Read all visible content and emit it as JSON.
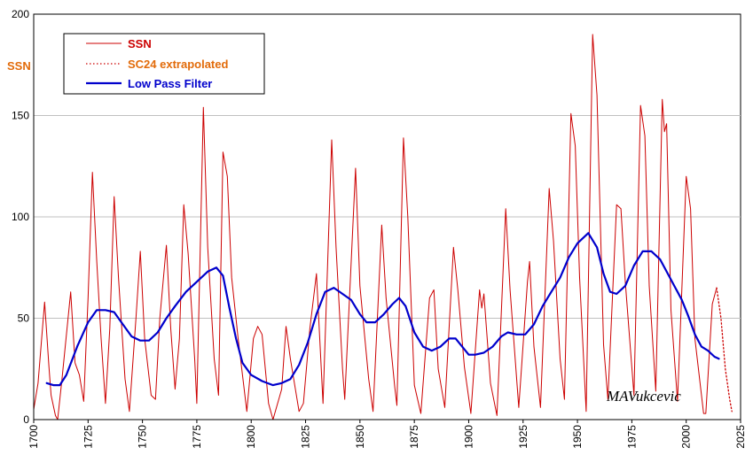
{
  "chart_data": {
    "type": "line",
    "ylabel": "SSN",
    "xlim": [
      1700,
      2025
    ],
    "ylim": [
      0,
      200
    ],
    "x_ticks": [
      1700,
      1725,
      1750,
      1775,
      1800,
      1825,
      1850,
      1875,
      1900,
      1925,
      1950,
      1975,
      2000,
      2025
    ],
    "y_ticks": [
      0,
      50,
      100,
      150,
      200
    ],
    "grid": "horizontal",
    "legend_position": "top-left",
    "watermark": "MAVukcevic",
    "series": [
      {
        "name": "SSN",
        "color": "#cc0000",
        "style": "solid-thin",
        "points": [
          [
            1700,
            5
          ],
          [
            1702,
            18
          ],
          [
            1705,
            58
          ],
          [
            1707,
            26
          ],
          [
            1708,
            12
          ],
          [
            1710,
            2
          ],
          [
            1711,
            0
          ],
          [
            1713,
            20
          ],
          [
            1717,
            63
          ],
          [
            1719,
            28
          ],
          [
            1721,
            22
          ],
          [
            1723,
            9
          ],
          [
            1725,
            60
          ],
          [
            1727,
            122
          ],
          [
            1729,
            78
          ],
          [
            1731,
            40
          ],
          [
            1733,
            8
          ],
          [
            1735,
            45
          ],
          [
            1737,
            110
          ],
          [
            1739,
            70
          ],
          [
            1742,
            20
          ],
          [
            1744,
            4
          ],
          [
            1747,
            50
          ],
          [
            1749,
            83
          ],
          [
            1751,
            40
          ],
          [
            1754,
            12
          ],
          [
            1756,
            10
          ],
          [
            1758,
            50
          ],
          [
            1761,
            86
          ],
          [
            1763,
            45
          ],
          [
            1765,
            15
          ],
          [
            1767,
            40
          ],
          [
            1769,
            106
          ],
          [
            1771,
            82
          ],
          [
            1774,
            30
          ],
          [
            1775,
            8
          ],
          [
            1778,
            154
          ],
          [
            1780,
            85
          ],
          [
            1783,
            30
          ],
          [
            1785,
            12
          ],
          [
            1787,
            132
          ],
          [
            1789,
            120
          ],
          [
            1791,
            70
          ],
          [
            1794,
            40
          ],
          [
            1798,
            4
          ],
          [
            1801,
            40
          ],
          [
            1803,
            46
          ],
          [
            1805,
            42
          ],
          [
            1808,
            8
          ],
          [
            1810,
            0
          ],
          [
            1814,
            15
          ],
          [
            1816,
            46
          ],
          [
            1818,
            30
          ],
          [
            1822,
            4
          ],
          [
            1824,
            8
          ],
          [
            1827,
            45
          ],
          [
            1830,
            72
          ],
          [
            1833,
            8
          ],
          [
            1837,
            138
          ],
          [
            1839,
            85
          ],
          [
            1842,
            25
          ],
          [
            1843,
            10
          ],
          [
            1848,
            124
          ],
          [
            1850,
            66
          ],
          [
            1854,
            20
          ],
          [
            1856,
            4
          ],
          [
            1860,
            96
          ],
          [
            1862,
            60
          ],
          [
            1866,
            16
          ],
          [
            1867,
            7
          ],
          [
            1870,
            139
          ],
          [
            1872,
            100
          ],
          [
            1875,
            17
          ],
          [
            1878,
            3
          ],
          [
            1882,
            60
          ],
          [
            1884,
            64
          ],
          [
            1886,
            25
          ],
          [
            1889,
            6
          ],
          [
            1893,
            85
          ],
          [
            1895,
            64
          ],
          [
            1898,
            26
          ],
          [
            1901,
            3
          ],
          [
            1905,
            64
          ],
          [
            1906,
            55
          ],
          [
            1907,
            62
          ],
          [
            1910,
            18
          ],
          [
            1913,
            2
          ],
          [
            1917,
            104
          ],
          [
            1919,
            64
          ],
          [
            1923,
            6
          ],
          [
            1927,
            68
          ],
          [
            1928,
            78
          ],
          [
            1930,
            36
          ],
          [
            1933,
            6
          ],
          [
            1937,
            114
          ],
          [
            1939,
            88
          ],
          [
            1942,
            30
          ],
          [
            1944,
            10
          ],
          [
            1947,
            151
          ],
          [
            1949,
            135
          ],
          [
            1951,
            70
          ],
          [
            1954,
            4
          ],
          [
            1957,
            190
          ],
          [
            1959,
            160
          ],
          [
            1962,
            37
          ],
          [
            1964,
            10
          ],
          [
            1968,
            106
          ],
          [
            1970,
            104
          ],
          [
            1972,
            68
          ],
          [
            1976,
            12
          ],
          [
            1979,
            155
          ],
          [
            1981,
            140
          ],
          [
            1983,
            66
          ],
          [
            1986,
            14
          ],
          [
            1989,
            158
          ],
          [
            1990,
            142
          ],
          [
            1991,
            146
          ],
          [
            1993,
            54
          ],
          [
            1996,
            9
          ],
          [
            2000,
            120
          ],
          [
            2002,
            104
          ],
          [
            2004,
            40
          ],
          [
            2008,
            3
          ],
          [
            2009,
            3
          ],
          [
            2012,
            57
          ],
          [
            2014,
            65
          ]
        ]
      },
      {
        "name": "SC24 extrapolated",
        "color": "#cc0000",
        "style": "dotted",
        "points": [
          [
            2014,
            65
          ],
          [
            2016,
            50
          ],
          [
            2018,
            25
          ],
          [
            2020,
            10
          ],
          [
            2021,
            4
          ]
        ]
      },
      {
        "name": "Low Pass Filter",
        "color": "#0000cc",
        "style": "solid-thick",
        "points": [
          [
            1706,
            18
          ],
          [
            1709,
            17
          ],
          [
            1712,
            17
          ],
          [
            1715,
            22
          ],
          [
            1720,
            36
          ],
          [
            1725,
            48
          ],
          [
            1729,
            54
          ],
          [
            1733,
            54
          ],
          [
            1737,
            53
          ],
          [
            1741,
            47
          ],
          [
            1745,
            41
          ],
          [
            1749,
            39
          ],
          [
            1753,
            39
          ],
          [
            1757,
            43
          ],
          [
            1761,
            50
          ],
          [
            1765,
            56
          ],
          [
            1770,
            63
          ],
          [
            1775,
            68
          ],
          [
            1780,
            73
          ],
          [
            1784,
            75
          ],
          [
            1787,
            71
          ],
          [
            1790,
            55
          ],
          [
            1793,
            40
          ],
          [
            1796,
            28
          ],
          [
            1800,
            22
          ],
          [
            1805,
            19
          ],
          [
            1810,
            17
          ],
          [
            1814,
            18
          ],
          [
            1818,
            20
          ],
          [
            1822,
            27
          ],
          [
            1826,
            38
          ],
          [
            1830,
            52
          ],
          [
            1834,
            63
          ],
          [
            1838,
            65
          ],
          [
            1842,
            62
          ],
          [
            1846,
            59
          ],
          [
            1850,
            52
          ],
          [
            1853,
            48
          ],
          [
            1857,
            48
          ],
          [
            1861,
            52
          ],
          [
            1865,
            57
          ],
          [
            1868,
            60
          ],
          [
            1871,
            56
          ],
          [
            1875,
            43
          ],
          [
            1879,
            36
          ],
          [
            1883,
            34
          ],
          [
            1887,
            36
          ],
          [
            1891,
            40
          ],
          [
            1894,
            40
          ],
          [
            1897,
            36
          ],
          [
            1900,
            32
          ],
          [
            1903,
            32
          ],
          [
            1907,
            33
          ],
          [
            1911,
            36
          ],
          [
            1915,
            41
          ],
          [
            1918,
            43
          ],
          [
            1922,
            42
          ],
          [
            1926,
            42
          ],
          [
            1930,
            47
          ],
          [
            1934,
            56
          ],
          [
            1938,
            63
          ],
          [
            1942,
            70
          ],
          [
            1946,
            80
          ],
          [
            1950,
            87
          ],
          [
            1955,
            92
          ],
          [
            1959,
            85
          ],
          [
            1962,
            72
          ],
          [
            1965,
            63
          ],
          [
            1968,
            62
          ],
          [
            1972,
            66
          ],
          [
            1976,
            76
          ],
          [
            1980,
            83
          ],
          [
            1984,
            83
          ],
          [
            1988,
            79
          ],
          [
            1992,
            71
          ],
          [
            1996,
            63
          ],
          [
            1998,
            59
          ],
          [
            2001,
            51
          ],
          [
            2004,
            42
          ],
          [
            2007,
            36
          ],
          [
            2010,
            34
          ],
          [
            2013,
            31
          ],
          [
            2015,
            30
          ]
        ]
      }
    ]
  }
}
